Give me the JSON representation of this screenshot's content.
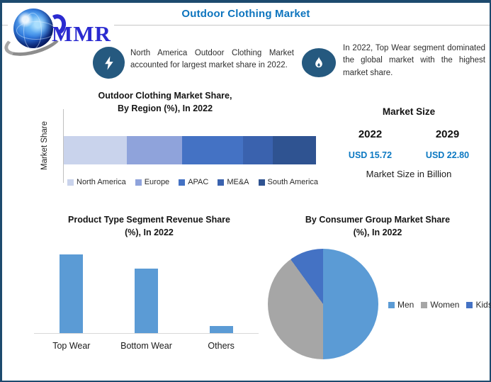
{
  "header": {
    "title": "Outdoor Clothing Market",
    "logo_text": "MMR"
  },
  "callouts": [
    {
      "icon": "lightning-icon",
      "text": "North America Outdoor Clothing Market accounted for largest market share in 2022."
    },
    {
      "icon": "flame-icon",
      "text": "In 2022, Top Wear segment dominated the global market with the highest market share."
    }
  ],
  "market_size": {
    "heading": "Market Size",
    "columns": [
      {
        "year": "2022",
        "value": "USD 15.72"
      },
      {
        "year": "2029",
        "value": "USD 22.80"
      }
    ],
    "note": "Market Size in Billion",
    "value_color": "#0b78c2"
  },
  "chart_data": [
    {
      "type": "bar",
      "variant": "horizontal-stacked",
      "title": "Outdoor Clothing Market Share, By Region (%), In 2022",
      "title_lines": [
        "Outdoor Clothing Market Share,",
        "By Region (%), In 2022"
      ],
      "ylabel": "Market Share",
      "categories": [
        "North America",
        "Europe",
        "APAC",
        "ME&A",
        "South America"
      ],
      "values": [
        25,
        22,
        24,
        12,
        17
      ],
      "colors": [
        "#c9d3ec",
        "#8fa3db",
        "#4472c4",
        "#3a62ae",
        "#2f5391"
      ],
      "xlim": [
        0,
        100
      ],
      "legend_position": "bottom",
      "grid": false
    },
    {
      "type": "bar",
      "variant": "vertical",
      "title": "Product Type Segment Revenue Share (%), In 2022",
      "title_lines": [
        "Product Type Segment Revenue Share",
        "(%), In 2022"
      ],
      "categories": [
        "Top Wear",
        "Bottom Wear",
        "Others"
      ],
      "values": [
        45,
        37,
        4
      ],
      "bar_color": "#5b9bd5",
      "ylim": [
        0,
        47
      ],
      "grid": false
    },
    {
      "type": "pie",
      "title": "By Consumer Group Market Share (%), In 2022",
      "title_lines": [
        "By Consumer Group Market Share",
        "(%), In 2022"
      ],
      "categories": [
        "Men",
        "Women",
        "Kids"
      ],
      "values": [
        50,
        40,
        10
      ],
      "colors": [
        "#5b9bd5",
        "#a6a6a6",
        "#4472c4"
      ],
      "legend_position": "right"
    }
  ]
}
